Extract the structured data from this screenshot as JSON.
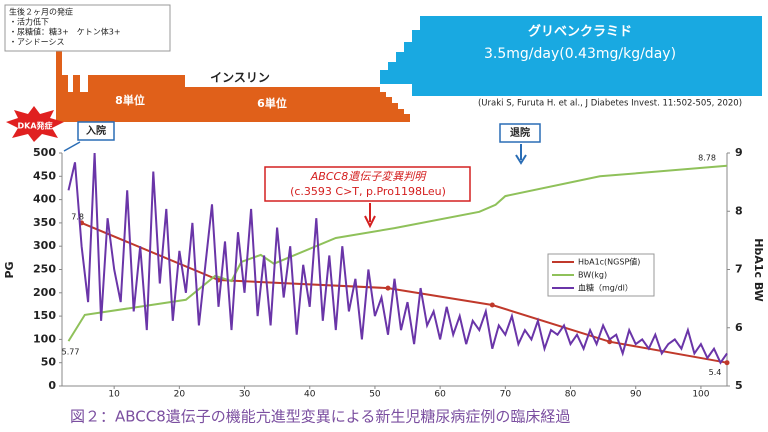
{
  "clinical_notes": [
    "生後２ヶ月の発症",
    "・活力低下",
    "・尿糖値：糖3+　ケトン体3+",
    "・アシドーシス"
  ],
  "treatment": {
    "insulin": "インスリン",
    "insulin_dose_1": "8単位",
    "insulin_dose_2": "6単位",
    "drug": "グリベンクラミド",
    "drug_dose": "3.5mg/day(0.43mg/kg/day)"
  },
  "citation": "(Uraki S, Furuta H. et al., J Diabetes Invest. 11:502-505, 2020)",
  "events": {
    "onset": "DKA発症",
    "admission": "入院",
    "discharge": "退院",
    "finding_1": "ABCC8遺伝子変異判明",
    "finding_2": "(c.3593 C>T, p.Pro1198Leu)"
  },
  "caption": "図２：ABCC8遺伝子の機能亢進型変異による新生児糖尿病症例の臨床経過",
  "chart_data": {
    "type": "line",
    "ylabel": "PG",
    "y2label": "HbA1c  BW",
    "xlim": [
      2,
      104
    ],
    "xticks": [
      10,
      20,
      30,
      40,
      50,
      60,
      70,
      80,
      90,
      100
    ],
    "ylim": [
      0,
      500
    ],
    "yticks": [
      0,
      50,
      100,
      150,
      200,
      250,
      300,
      350,
      400,
      450,
      500
    ],
    "y2lim": [
      5,
      9
    ],
    "y2ticks": [
      5,
      6,
      7,
      8,
      9
    ],
    "legend": "right",
    "series": [
      {
        "name": "HbA1c(NGSP値)",
        "color": "#c0392b",
        "axis": "y2",
        "markers": true,
        "x": [
          5,
          26,
          52,
          68,
          86,
          104
        ],
        "values": [
          7.8,
          6.82,
          6.68,
          6.39,
          5.76,
          5.4
        ]
      },
      {
        "name": "BW(kg)",
        "color": "#8fc15a",
        "axis": "y2",
        "markers": false,
        "x": [
          3,
          5.5,
          21,
          25.5,
          28,
          29.5,
          32.5,
          34.5,
          44,
          53,
          66,
          68.5,
          70,
          84.5,
          104
        ],
        "values": [
          5.77,
          6.22,
          6.48,
          6.89,
          6.8,
          7.13,
          7.25,
          7.1,
          7.54,
          7.71,
          7.99,
          8.11,
          8.26,
          8.6,
          8.78
        ]
      },
      {
        "name": "血糖（mg/dl）",
        "color": "#6a35a8",
        "axis": "y",
        "markers": false,
        "x": [
          3,
          4,
          5,
          6,
          7,
          8,
          9,
          10,
          11,
          12,
          13,
          14,
          15,
          16,
          17,
          18,
          19,
          20,
          21,
          22,
          23,
          24,
          25,
          26,
          27,
          28,
          29,
          30,
          31,
          32,
          33,
          34,
          35,
          36,
          37,
          38,
          39,
          40,
          41,
          42,
          43,
          44,
          45,
          46,
          47,
          48,
          49,
          50,
          51,
          52,
          53,
          54,
          55,
          56,
          57,
          58,
          59,
          60,
          61,
          62,
          63,
          64,
          65,
          66,
          67,
          68,
          69,
          70,
          71,
          72,
          73,
          74,
          75,
          76,
          77,
          78,
          79,
          80,
          81,
          82,
          83,
          84,
          85,
          86,
          87,
          88,
          89,
          90,
          91,
          92,
          93,
          94,
          95,
          96,
          97,
          98,
          99,
          100,
          101,
          102,
          103,
          104
        ],
        "values": [
          420,
          480,
          300,
          180,
          500,
          140,
          360,
          250,
          180,
          420,
          160,
          300,
          120,
          460,
          220,
          380,
          140,
          290,
          200,
          350,
          130,
          260,
          390,
          170,
          310,
          120,
          330,
          200,
          380,
          150,
          280,
          130,
          340,
          190,
          300,
          110,
          260,
          170,
          360,
          140,
          280,
          120,
          300,
          160,
          230,
          100,
          250,
          150,
          190,
          110,
          230,
          120,
          180,
          90,
          210,
          130,
          160,
          100,
          170,
          110,
          150,
          90,
          140,
          120,
          160,
          80,
          130,
          110,
          150,
          90,
          120,
          100,
          140,
          80,
          120,
          110,
          130,
          90,
          110,
          80,
          120,
          90,
          130,
          100,
          110,
          70,
          120,
          90,
          100,
          80,
          110,
          70,
          90,
          100,
          80,
          120,
          70,
          90,
          60,
          80,
          50,
          70
        ]
      }
    ]
  }
}
